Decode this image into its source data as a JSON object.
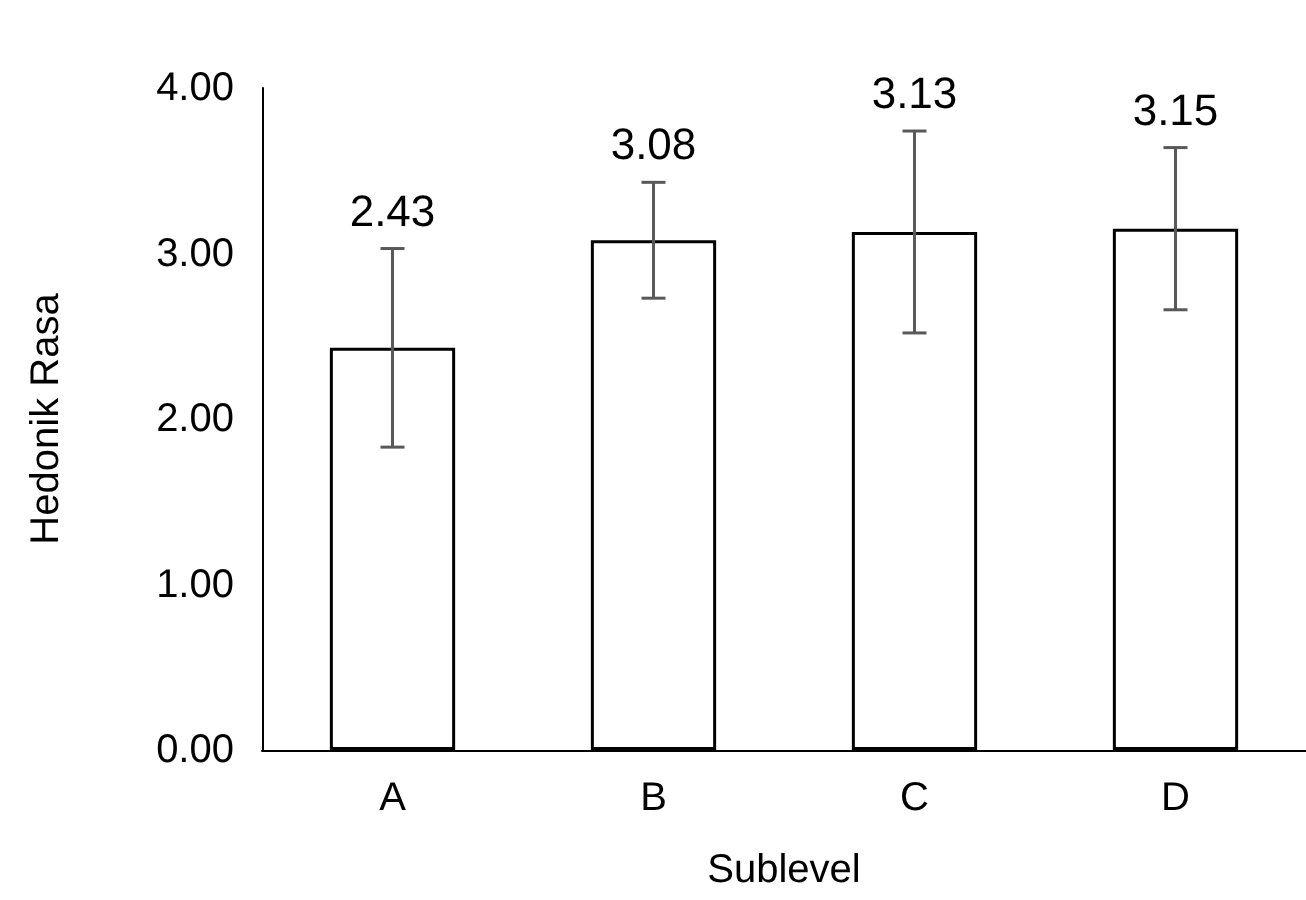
{
  "chart_data": {
    "type": "bar",
    "xlabel": "Sublevel",
    "ylabel": "Hedonik Rasa",
    "categories": [
      "A",
      "B",
      "C",
      "D"
    ],
    "values": [
      2.43,
      3.08,
      3.13,
      3.15
    ],
    "color": "#ffffff",
    "errors": [
      0.6,
      0.35,
      0.61,
      0.49
    ],
    "data_labels": true,
    "ylim": [
      0,
      4
    ],
    "yticks": [
      {
        "value": 0,
        "label": "0.00"
      },
      {
        "value": 1,
        "label": "1.00"
      },
      {
        "value": 2,
        "label": "2.00"
      },
      {
        "value": 3,
        "label": "3.00"
      },
      {
        "value": 4,
        "label": "4.00"
      }
    ],
    "grid": false
  }
}
